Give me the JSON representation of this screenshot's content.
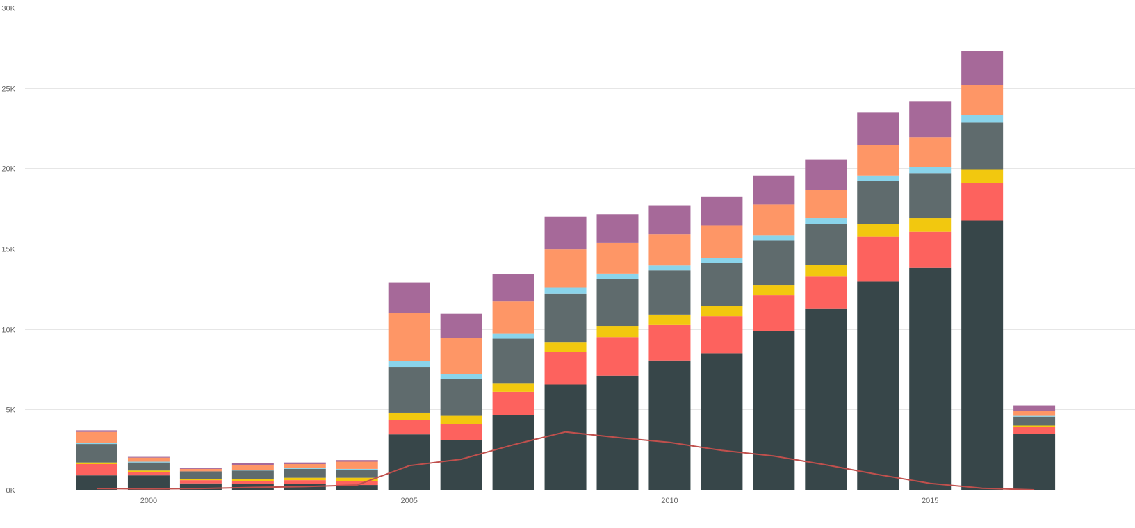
{
  "chart_data": {
    "type": "bar",
    "stacked": true,
    "title": "",
    "xlabel": "",
    "ylabel": "",
    "ylim": [
      0,
      30000
    ],
    "y_ticks": [
      0,
      5000,
      10000,
      15000,
      20000,
      25000,
      30000
    ],
    "y_tick_labels": [
      "0K",
      "5K",
      "10K",
      "15K",
      "20K",
      "25K",
      "30K"
    ],
    "x_tick_labels": [
      {
        "year": 2000,
        "label": "2000"
      },
      {
        "year": 2005,
        "label": "2005"
      },
      {
        "year": 2010,
        "label": "2010"
      },
      {
        "year": 2015,
        "label": "2015"
      }
    ],
    "grid": true,
    "legend": "none",
    "categories": [
      1999,
      2000,
      2001,
      2002,
      2003,
      2004,
      2005,
      2006,
      2007,
      2008,
      2009,
      2010,
      2011,
      2012,
      2013,
      2014,
      2015,
      2016,
      2017
    ],
    "series": [
      {
        "color": "#374649",
        "values": [
          900,
          900,
          400,
          350,
          350,
          300,
          3450,
          3100,
          4650,
          6550,
          7100,
          8050,
          8500,
          9900,
          11250,
          12950,
          13800,
          16750,
          3500
        ]
      },
      {
        "color": "#FD625E",
        "values": [
          700,
          200,
          200,
          200,
          250,
          250,
          900,
          1000,
          1450,
          2050,
          2400,
          2200,
          2300,
          2200,
          2050,
          2800,
          2250,
          2350,
          400
        ]
      },
      {
        "color": "#F2C80F",
        "values": [
          100,
          100,
          50,
          100,
          150,
          200,
          450,
          500,
          500,
          600,
          700,
          650,
          650,
          650,
          700,
          800,
          850,
          850,
          100
        ]
      },
      {
        "color": "#5F6B6D",
        "values": [
          1150,
          500,
          500,
          550,
          550,
          500,
          2850,
          2300,
          2800,
          3000,
          2900,
          2750,
          2650,
          2750,
          2550,
          2650,
          2800,
          2900,
          550
        ]
      },
      {
        "color": "#8AD4EB",
        "values": [
          50,
          50,
          0,
          50,
          50,
          50,
          350,
          300,
          300,
          400,
          350,
          300,
          300,
          350,
          350,
          350,
          400,
          450,
          50
        ]
      },
      {
        "color": "#FE9666",
        "values": [
          700,
          250,
          150,
          300,
          250,
          450,
          3000,
          2250,
          2050,
          2350,
          1900,
          1950,
          2050,
          1900,
          1750,
          1900,
          1850,
          1900,
          300
        ]
      },
      {
        "color": "#A66999",
        "values": [
          100,
          50,
          50,
          100,
          100,
          100,
          1900,
          1500,
          1650,
          2050,
          1800,
          1800,
          1800,
          1800,
          1900,
          2050,
          2200,
          2100,
          350
        ]
      }
    ],
    "line_series": {
      "color": "#C0504D",
      "values": [
        80,
        60,
        80,
        150,
        200,
        300,
        1500,
        1900,
        2800,
        3600,
        3250,
        2950,
        2450,
        2100,
        1550,
        950,
        400,
        100,
        0
      ]
    }
  }
}
